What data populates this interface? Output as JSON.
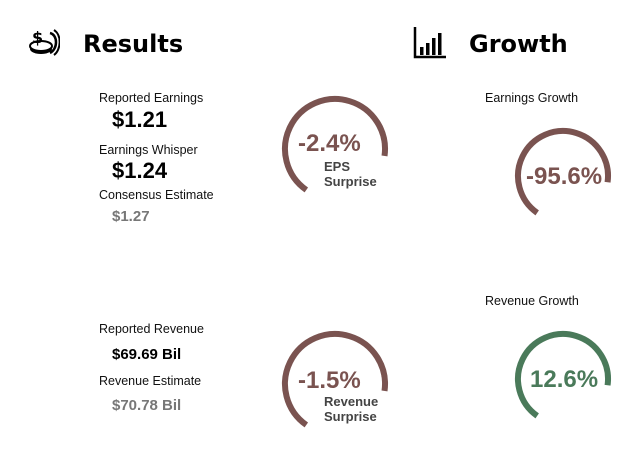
{
  "results": {
    "title": "Results",
    "icon": "money-icon",
    "reported_earnings": {
      "label": "Reported Earnings",
      "value": "$1.21"
    },
    "earnings_whisper": {
      "label": "Earnings Whisper",
      "value": "$1.24"
    },
    "consensus_estimate": {
      "label": "Consensus Estimate",
      "value": "$1.27"
    },
    "eps_surprise": {
      "value": "-2.4%",
      "label_line1": "EPS",
      "label_line2": "Surprise",
      "color": "#7a5350"
    },
    "reported_revenue": {
      "label": "Reported Revenue",
      "value": "$69.69 Bil"
    },
    "revenue_estimate": {
      "label": "Revenue Estimate",
      "value": "$70.78 Bil"
    },
    "revenue_surprise": {
      "value": "-1.5%",
      "label_line1": "Revenue",
      "label_line2": "Surprise",
      "color": "#7a5350"
    }
  },
  "growth": {
    "title": "Growth",
    "icon": "bar-chart-icon",
    "earnings_growth": {
      "label": "Earnings Growth",
      "value": "-95.6%",
      "color": "#7a5350"
    },
    "revenue_growth": {
      "label": "Revenue Growth",
      "value": "12.6%",
      "color": "#4a7a5a"
    }
  }
}
